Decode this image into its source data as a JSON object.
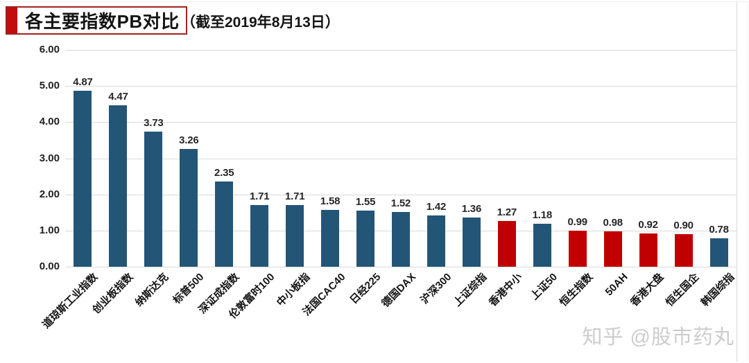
{
  "header": {
    "title": "各主要指数PB对比",
    "subtitle": "（截至2019年8月13日）"
  },
  "watermark": {
    "text": "知乎 @股市药丸"
  },
  "colors": {
    "bar_blue": "#235577",
    "bar_red": "#c00000",
    "title_border": "#a32020",
    "title_accent": "#c20d0e",
    "grid": "#d9d9d9",
    "text": "#141414",
    "watermark": "#cccccc"
  },
  "chart_data": {
    "type": "bar",
    "title": "各主要指数PB对比",
    "subtitle": "截至2019年8月13日",
    "xlabel": "",
    "ylabel": "",
    "ylim": [
      0,
      6
    ],
    "yticks": [
      6,
      5,
      4,
      3,
      2,
      1,
      0
    ],
    "ytick_labels": [
      "6.00",
      "5.00",
      "4.00",
      "3.00",
      "2.00",
      "1.00",
      "0.00"
    ],
    "grid": true,
    "legend": false,
    "categories": [
      "道琼斯工业指数",
      "创业板指数",
      "纳斯达克",
      "标普500",
      "深证成指数",
      "伦敦富时100",
      "中小板指",
      "法国CAC40",
      "日经225",
      "德国DAX",
      "沪深300",
      "上证综指",
      "香港中小",
      "上证50",
      "恒生指数",
      "50AH",
      "香港大盘",
      "恒生国企",
      "韩国综指"
    ],
    "values": [
      4.87,
      4.47,
      3.73,
      3.26,
      2.35,
      1.71,
      1.71,
      1.58,
      1.55,
      1.52,
      1.42,
      1.36,
      1.27,
      1.18,
      0.99,
      0.98,
      0.92,
      0.9,
      0.78
    ],
    "bar_colors": [
      "blue",
      "blue",
      "blue",
      "blue",
      "blue",
      "blue",
      "blue",
      "blue",
      "blue",
      "blue",
      "blue",
      "blue",
      "red",
      "blue",
      "red",
      "red",
      "red",
      "red",
      "blue"
    ]
  }
}
